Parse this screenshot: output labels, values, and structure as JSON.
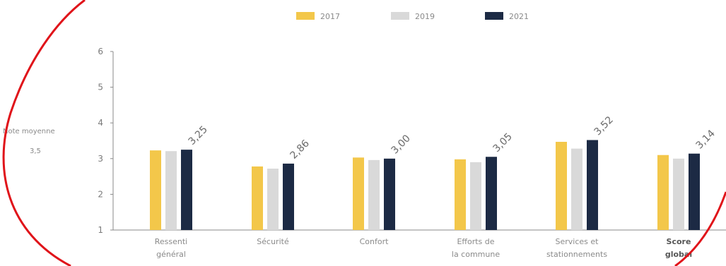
{
  "chart_data": {
    "type": "bar",
    "categories": [
      [
        "Ressenti",
        "général"
      ],
      [
        "Sécurité"
      ],
      [
        "Confort"
      ],
      [
        "Efforts de",
        "la commune"
      ],
      [
        "Services et",
        "stationnements"
      ],
      [
        "Score",
        "global"
      ]
    ],
    "bold_categories": [
      5
    ],
    "series": [
      {
        "name": "2017",
        "values": [
          3.23,
          2.78,
          3.03,
          2.98,
          3.47,
          3.1
        ]
      },
      {
        "name": "2019",
        "values": [
          3.21,
          2.72,
          2.96,
          2.9,
          3.28,
          3.0
        ]
      },
      {
        "name": "2021",
        "values": [
          3.25,
          2.86,
          3.0,
          3.05,
          3.52,
          3.14
        ]
      }
    ],
    "value_labels": [
      "3,25",
      "2,86",
      "3,00",
      "3,05",
      "3,52",
      "3,14"
    ],
    "ylim": [
      1,
      6
    ],
    "yticks": [
      "1",
      "2",
      "3",
      "4",
      "5",
      "6"
    ],
    "side_annotation": [
      "Note moyenne",
      "3,5"
    ],
    "legend_position": "top-center",
    "grid": false,
    "colors": {
      "2017": "#f3c74a",
      "2019": "#d9d9d9",
      "2021": "#1c2a44",
      "axis": "#888888",
      "highlight_circle": "#e0141a"
    }
  }
}
